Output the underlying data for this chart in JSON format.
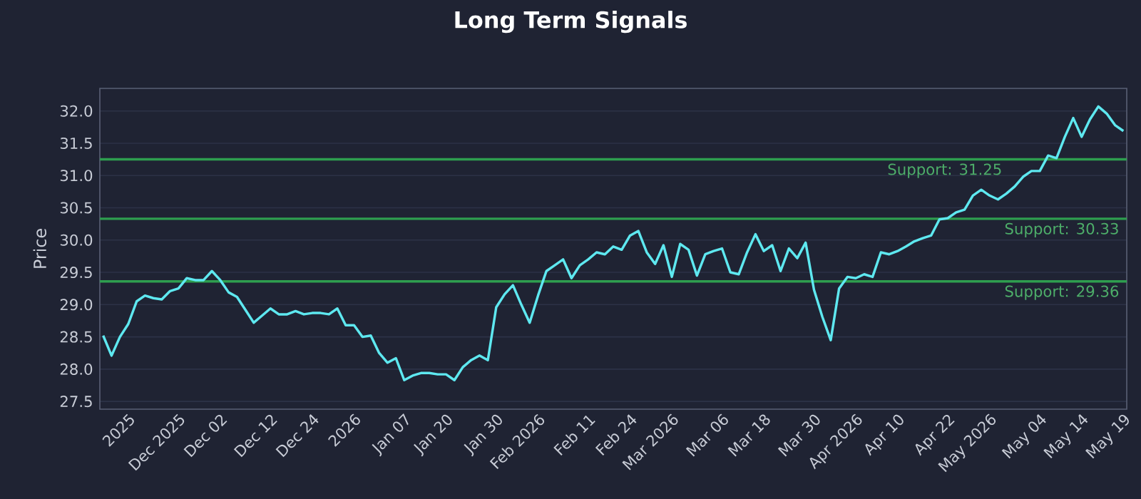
{
  "chart_data": {
    "type": "line",
    "title": "Long Term Signals",
    "ylabel": "Price",
    "categories": [
      null,
      null,
      null,
      "2025",
      null,
      null,
      null,
      null,
      null,
      "Dec 2025",
      null,
      null,
      null,
      null,
      "Dec 02",
      null,
      null,
      null,
      null,
      null,
      "Dec 12",
      null,
      null,
      null,
      null,
      "Dec 24",
      null,
      null,
      null,
      null,
      "2026",
      null,
      null,
      null,
      null,
      null,
      "Jan 07",
      null,
      null,
      null,
      null,
      "Jan 20",
      null,
      null,
      null,
      null,
      null,
      "Jan 30",
      null,
      null,
      null,
      null,
      "Feb 2026",
      null,
      null,
      null,
      null,
      null,
      "Feb 11",
      null,
      null,
      null,
      null,
      "Feb 24",
      null,
      null,
      null,
      null,
      "Mar 2026",
      null,
      null,
      null,
      null,
      null,
      "Mar 06",
      null,
      null,
      null,
      null,
      "Mar 18",
      null,
      null,
      null,
      null,
      null,
      "Mar 30",
      null,
      null,
      null,
      null,
      "Apr 2026",
      null,
      null,
      null,
      null,
      "Apr 10",
      null,
      null,
      null,
      null,
      null,
      "Apr 22",
      null,
      null,
      null,
      null,
      "May 2026",
      null,
      null,
      null,
      null,
      null,
      "May 04",
      null,
      null,
      null,
      null,
      "May 14",
      null,
      null,
      null,
      null,
      "May 19"
    ],
    "series": [
      {
        "color": "#5ee8f0",
        "values": [
          28.52,
          28.21,
          28.5,
          28.7,
          29.05,
          29.14,
          29.1,
          29.08,
          29.21,
          29.25,
          29.41,
          29.38,
          29.38,
          29.52,
          29.38,
          29.19,
          29.12,
          28.92,
          28.72,
          28.83,
          28.94,
          28.85,
          28.85,
          28.9,
          28.85,
          28.87,
          28.87,
          28.85,
          28.94,
          28.68,
          28.68,
          28.5,
          28.52,
          28.25,
          28.1,
          28.17,
          27.83,
          27.9,
          27.94,
          27.94,
          27.92,
          27.92,
          27.83,
          28.03,
          28.14,
          28.21,
          28.14,
          28.96,
          29.16,
          29.3,
          29.0,
          28.72,
          29.14,
          29.52,
          29.61,
          29.7,
          29.41,
          29.61,
          29.7,
          29.81,
          29.78,
          29.9,
          29.85,
          30.07,
          30.14,
          29.81,
          29.63,
          29.92,
          29.43,
          29.94,
          29.85,
          29.45,
          29.78,
          29.83,
          29.87,
          29.5,
          29.47,
          29.81,
          30.09,
          29.83,
          29.92,
          29.52,
          29.87,
          29.72,
          29.96,
          29.23,
          28.81,
          28.45,
          29.25,
          29.43,
          29.41,
          29.47,
          29.43,
          29.81,
          29.78,
          29.83,
          29.9,
          29.98,
          30.03,
          30.07,
          30.32,
          30.34,
          30.43,
          30.47,
          30.69,
          30.78,
          30.69,
          30.63,
          30.72,
          30.83,
          30.98,
          31.07,
          31.07,
          31.31,
          31.27,
          31.6,
          31.89,
          31.6,
          31.87,
          32.07,
          31.96,
          31.78,
          31.69
        ]
      }
    ],
    "ylim": [
      27.38,
      32.35
    ],
    "yticks": [
      {
        "value": 27.5,
        "label": "27.5"
      },
      {
        "value": 28,
        "label": "28.0"
      },
      {
        "value": 28.5,
        "label": "28.5"
      },
      {
        "value": 29,
        "label": "29.0"
      },
      {
        "value": 29.5,
        "label": "29.5"
      },
      {
        "value": 30,
        "label": "30.0"
      },
      {
        "value": 30.5,
        "label": "30.5"
      },
      {
        "value": 31,
        "label": "31.0"
      },
      {
        "value": 31.5,
        "label": "31.5"
      },
      {
        "value": 32,
        "label": "32.0"
      }
    ],
    "grid": "y",
    "ref_lines": [
      {
        "axis": "y",
        "value": 31.25,
        "label": "Support: 31.25",
        "color": "#2e9e4f"
      },
      {
        "axis": "y",
        "value": 30.33,
        "label": "Support: 30.33",
        "color": "#2e9e4f"
      },
      {
        "axis": "y",
        "value": 29.36,
        "label": "Support: 29.36",
        "color": "#2e9e4f"
      }
    ]
  }
}
